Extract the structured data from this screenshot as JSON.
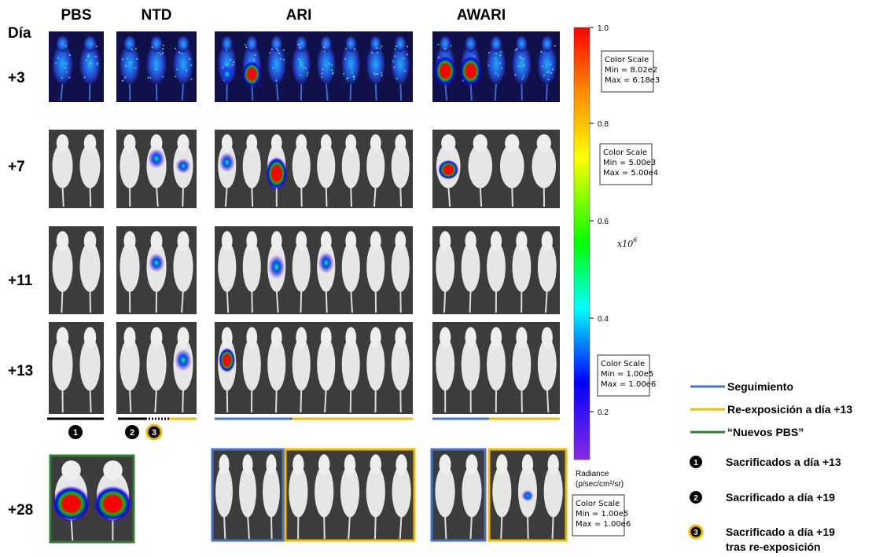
{
  "header": {
    "day_label": "Día",
    "groups": [
      "PBS",
      "NTD",
      "ARI",
      "AWARI"
    ]
  },
  "rows": [
    "+3",
    "+7",
    "+11",
    "+13",
    "+28"
  ],
  "colorbar": {
    "ticks": [
      "1.0",
      "0.8",
      "0.6",
      "0.4",
      "0.2"
    ],
    "multiplier": {
      "base": "x10",
      "exponent": "6"
    },
    "unit": [
      "Radiance",
      "(p/sec/cm²/sr)"
    ]
  },
  "scale_boxes": [
    [
      "Color Scale",
      "Min = 8.02e2",
      "Max = 6.18e3"
    ],
    [
      "Color Scale",
      "Min = 5.00e3",
      "Max = 5.00e4"
    ],
    [
      "Color Scale",
      "Min = 1.00e5",
      "Max = 1.00e6"
    ],
    [
      "Color Scale",
      "Min = 1.00e5",
      "Max = 1.00e6"
    ]
  ],
  "legend": {
    "lines": [
      "Seguimiento",
      "Re-exposición a día +13",
      "“Nuevos PBS”"
    ],
    "markers": [
      {
        "number": "1",
        "text": [
          "Sacrificados a día +13"
        ]
      },
      {
        "number": "2",
        "text": [
          "Sacrificado a día +19"
        ]
      },
      {
        "number": "3",
        "text": [
          "Sacrificado a día +19",
          "tras re-exposición"
        ]
      }
    ]
  }
}
